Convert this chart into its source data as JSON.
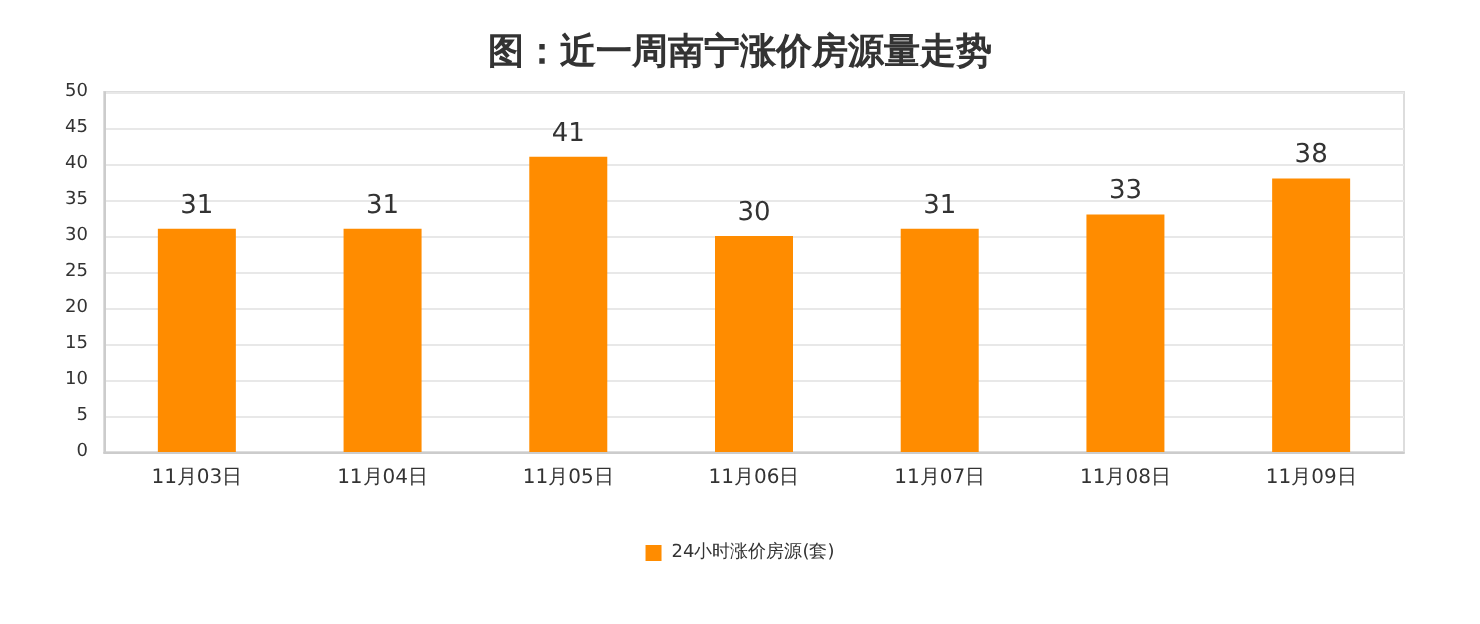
{
  "chart_data": {
    "type": "bar",
    "title": "图：近一周南宁涨价房源量走势",
    "categories": [
      "11月03日",
      "11月04日",
      "11月05日",
      "11月06日",
      "11月07日",
      "11月08日",
      "11月09日"
    ],
    "series": [
      {
        "name": "24小时涨价房源(套)",
        "color": "#ff8c00",
        "values": [
          31,
          31,
          41,
          30,
          31,
          33,
          38
        ]
      }
    ],
    "ylim": [
      0,
      50
    ],
    "yticks": [
      0,
      5,
      10,
      15,
      20,
      25,
      30,
      35,
      40,
      45,
      50
    ],
    "grid": "y",
    "legend": "bottom",
    "data_labels": true
  }
}
